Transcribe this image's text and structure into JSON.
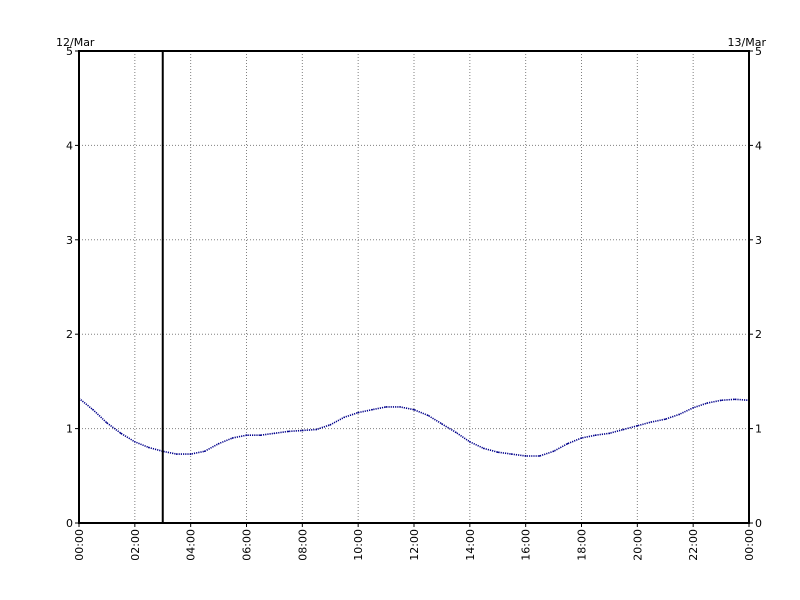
{
  "chart_data": {
    "type": "line",
    "title": "",
    "xlabel": "",
    "ylabel": "",
    "date_left": "12/Mar",
    "date_right": "13/Mar",
    "ylim": [
      0,
      5
    ],
    "xlim_hours": [
      0,
      24
    ],
    "y_ticks": [
      "0",
      "1",
      "2",
      "3",
      "4",
      "5"
    ],
    "x_ticks": [
      "00:00",
      "02:00",
      "04:00",
      "06:00",
      "08:00",
      "10:00",
      "12:00",
      "14:00",
      "16:00",
      "18:00",
      "20:00",
      "22:00",
      "00:00"
    ],
    "grid": true,
    "grid_style": "dotted",
    "series_color": "#00008b",
    "marker_line_hour": 3.0,
    "marker_line_color": "#000000",
    "series": [
      {
        "x": [
          "00:00",
          "00:30",
          "01:00",
          "01:30",
          "02:00",
          "02:30",
          "03:00",
          "03:30",
          "04:00",
          "04:30",
          "05:00",
          "05:30",
          "06:00",
          "06:30",
          "07:00",
          "07:30",
          "08:00",
          "08:30",
          "09:00",
          "09:30",
          "10:00",
          "10:30",
          "11:00",
          "11:30",
          "12:00",
          "12:30",
          "13:00",
          "13:30",
          "14:00",
          "14:30",
          "15:00",
          "15:30",
          "16:00",
          "16:30",
          "17:00",
          "17:30",
          "18:00",
          "18:30",
          "19:00",
          "19:30",
          "20:00",
          "20:30",
          "21:00",
          "21:30",
          "22:00",
          "22:30",
          "23:00",
          "23:30",
          "24:00"
        ],
        "values": [
          1.32,
          1.2,
          1.06,
          0.95,
          0.86,
          0.8,
          0.76,
          0.73,
          0.73,
          0.76,
          0.84,
          0.9,
          0.93,
          0.93,
          0.95,
          0.97,
          0.98,
          0.99,
          1.04,
          1.12,
          1.17,
          1.2,
          1.23,
          1.23,
          1.2,
          1.14,
          1.05,
          0.96,
          0.86,
          0.79,
          0.75,
          0.73,
          0.71,
          0.71,
          0.76,
          0.84,
          0.9,
          0.93,
          0.95,
          0.99,
          1.03,
          1.07,
          1.1,
          1.15,
          1.22,
          1.27,
          1.3,
          1.31,
          1.3
        ]
      }
    ]
  }
}
